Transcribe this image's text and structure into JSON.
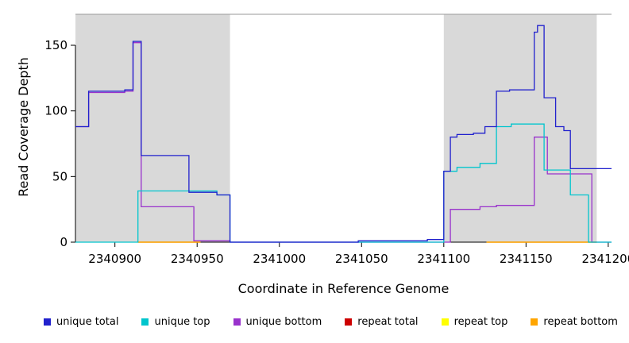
{
  "chart_data": {
    "type": "line",
    "style": "step-after",
    "title": "",
    "xlabel": "Coordinate in Reference Genome",
    "ylabel": "Read Coverage Depth",
    "xlim": [
      2340876,
      2341202
    ],
    "ylim": [
      0,
      173.6
    ],
    "x_ticks": [
      2340900,
      2340950,
      2341000,
      2341050,
      2341100,
      2341150,
      2341200
    ],
    "y_ticks": [
      0,
      50,
      100,
      150
    ],
    "grid": false,
    "legend_position": "bottom",
    "region_color": "#d9d9d9",
    "shaded_regions": [
      [
        2340876,
        2340970
      ],
      [
        2341100,
        2341193
      ]
    ],
    "series": [
      {
        "name": "repeat total",
        "color": "#cd0000",
        "points": [
          [
            2340914,
            0
          ],
          [
            2340952,
            null
          ],
          [
            2341126,
            0
          ],
          [
            2341193,
            null
          ]
        ]
      },
      {
        "name": "repeat top",
        "color": "#ffff00",
        "points": [
          [
            2340914,
            0
          ],
          [
            2340952,
            null
          ],
          [
            2341126,
            0
          ],
          [
            2341193,
            null
          ]
        ]
      },
      {
        "name": "repeat bottom",
        "color": "#ffa500",
        "points": [
          [
            2340914,
            0
          ],
          [
            2340952,
            null
          ],
          [
            2341126,
            0
          ],
          [
            2341193,
            null
          ]
        ]
      },
      {
        "name": "unique bottom",
        "color": "#9932cc",
        "points": [
          [
            2340876,
            88
          ],
          [
            2340884,
            114
          ],
          [
            2340906,
            115
          ],
          [
            2340911,
            152
          ],
          [
            2340916,
            27
          ],
          [
            2340948,
            1
          ],
          [
            2340970,
            0
          ],
          [
            2341104,
            25
          ],
          [
            2341122,
            27
          ],
          [
            2341132,
            28
          ],
          [
            2341155,
            80
          ],
          [
            2341163,
            52
          ],
          [
            2341190,
            0
          ],
          [
            2341202,
            0
          ]
        ]
      },
      {
        "name": "unique top",
        "color": "#00c5cd",
        "points": [
          [
            2340876,
            0
          ],
          [
            2340914,
            39
          ],
          [
            2340962,
            36
          ],
          [
            2340970,
            0
          ],
          [
            2341100,
            54
          ],
          [
            2341108,
            57
          ],
          [
            2341122,
            60
          ],
          [
            2341132,
            88
          ],
          [
            2341141,
            90
          ],
          [
            2341161,
            55
          ],
          [
            2341177,
            36
          ],
          [
            2341188,
            0
          ],
          [
            2341202,
            0
          ]
        ]
      },
      {
        "name": "unique total",
        "color": "#2121cd",
        "points": [
          [
            2340876,
            88
          ],
          [
            2340884,
            115
          ],
          [
            2340906,
            116
          ],
          [
            2340911,
            153
          ],
          [
            2340916,
            66
          ],
          [
            2340945,
            38
          ],
          [
            2340962,
            36
          ],
          [
            2340970,
            0
          ],
          [
            2341048,
            1
          ],
          [
            2341090,
            2
          ],
          [
            2341100,
            54
          ],
          [
            2341104,
            80
          ],
          [
            2341108,
            82
          ],
          [
            2341118,
            83
          ],
          [
            2341125,
            88
          ],
          [
            2341132,
            115
          ],
          [
            2341140,
            116
          ],
          [
            2341155,
            160
          ],
          [
            2341157,
            165
          ],
          [
            2341161,
            110
          ],
          [
            2341168,
            88
          ],
          [
            2341173,
            85
          ],
          [
            2341177,
            56
          ],
          [
            2341202,
            56
          ]
        ]
      }
    ],
    "legend": [
      {
        "label": "unique total",
        "color": "#2121cd"
      },
      {
        "label": "unique top",
        "color": "#00c5cd"
      },
      {
        "label": "unique bottom",
        "color": "#9932cc"
      },
      {
        "label": "repeat total",
        "color": "#cd0000"
      },
      {
        "label": "repeat top",
        "color": "#ffff00"
      },
      {
        "label": "repeat bottom",
        "color": "#ffa500"
      }
    ]
  }
}
